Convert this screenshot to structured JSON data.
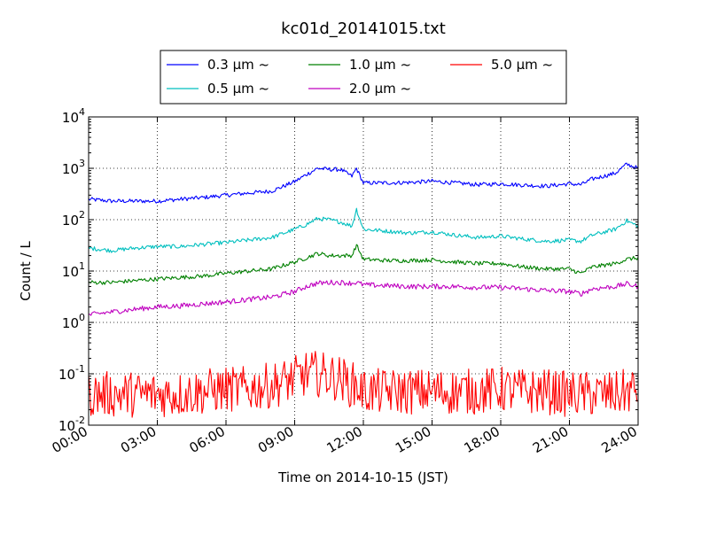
{
  "chart_data": {
    "type": "line",
    "title": "kc01d_20141015.txt",
    "xlabel": "Time on 2014-10-15 (JST)",
    "ylabel": "Count / L",
    "y_scale": "log",
    "ylim": [
      0.01,
      10000
    ],
    "xlim": [
      "00:00",
      "24:00"
    ],
    "grid": true,
    "grid_style": "dotted",
    "legend_position": "top",
    "x_ticks": [
      "00:00",
      "03:00",
      "06:00",
      "09:00",
      "12:00",
      "15:00",
      "18:00",
      "21:00",
      "24:00"
    ],
    "y_ticks": [
      {
        "value": 0.01,
        "base": "10",
        "exp": "-2"
      },
      {
        "value": 0.1,
        "base": "10",
        "exp": "-1"
      },
      {
        "value": 1,
        "base": "10",
        "exp": "0"
      },
      {
        "value": 10,
        "base": "10",
        "exp": "1"
      },
      {
        "value": 100,
        "base": "10",
        "exp": "2"
      },
      {
        "value": 1000,
        "base": "10",
        "exp": "3"
      },
      {
        "value": 10000,
        "base": "10",
        "exp": "4"
      }
    ],
    "x_hours": [
      0,
      1,
      2,
      3,
      4,
      5,
      6,
      7,
      8,
      9,
      9.5,
      10,
      10.5,
      11,
      11.5,
      11.7,
      12,
      13,
      14,
      15,
      16,
      17,
      18,
      19,
      20,
      21,
      21.5,
      22,
      23,
      23.5,
      24
    ],
    "series": [
      {
        "name": "0.3 µm ~",
        "color": "#0000ff",
        "noise": 0.04,
        "values": [
          250,
          230,
          230,
          230,
          250,
          270,
          300,
          330,
          360,
          550,
          750,
          1000,
          950,
          950,
          700,
          1000,
          520,
          520,
          530,
          560,
          520,
          480,
          500,
          470,
          450,
          500,
          480,
          620,
          800,
          1200,
          1000
        ]
      },
      {
        "name": "0.5 µm ~",
        "color": "#00bfbf",
        "noise": 0.04,
        "values": [
          28,
          25,
          28,
          30,
          30,
          33,
          36,
          40,
          45,
          65,
          80,
          105,
          100,
          90,
          75,
          160,
          65,
          60,
          55,
          58,
          50,
          45,
          48,
          42,
          38,
          40,
          38,
          50,
          65,
          95,
          75
        ]
      },
      {
        "name": "1.0 µm ~",
        "color": "#008000",
        "noise": 0.04,
        "values": [
          6,
          6,
          6.5,
          7,
          7.5,
          8,
          9,
          10,
          11,
          15,
          18,
          22,
          20,
          20,
          20,
          32,
          17,
          16,
          16,
          16.5,
          15,
          14,
          14,
          12,
          11,
          11,
          9,
          12,
          14,
          17,
          18
        ]
      },
      {
        "name": "2.0 µm ~",
        "color": "#bf00bf",
        "noise": 0.05,
        "values": [
          1.4,
          1.6,
          1.8,
          2.0,
          2.1,
          2.3,
          2.5,
          2.8,
          3.1,
          4.0,
          5.0,
          5.8,
          6.0,
          6.0,
          5.8,
          6.0,
          5.4,
          5.2,
          5.0,
          5.0,
          5.0,
          4.8,
          4.8,
          4.5,
          4.2,
          4.0,
          3.6,
          4.5,
          5.0,
          5.6,
          5.0
        ]
      },
      {
        "name": "5.0 µm ~",
        "color": "#ff0000",
        "noise": 0.45,
        "values": [
          0.04,
          0.04,
          0.04,
          0.04,
          0.04,
          0.045,
          0.05,
          0.05,
          0.06,
          0.08,
          0.1,
          0.1,
          0.09,
          0.08,
          0.06,
          0.06,
          0.045,
          0.045,
          0.045,
          0.045,
          0.045,
          0.045,
          0.05,
          0.045,
          0.045,
          0.04,
          0.04,
          0.04,
          0.04,
          0.045,
          0.05
        ]
      }
    ]
  }
}
